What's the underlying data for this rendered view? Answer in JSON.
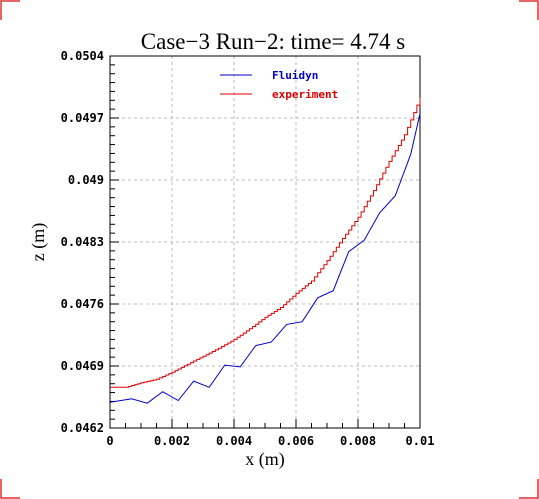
{
  "chart_data": {
    "type": "line",
    "title": "Case−3 Run−2: time= 4.74 s",
    "xlabel": "x (m)",
    "ylabel": "z (m)",
    "xlim": [
      0,
      0.01
    ],
    "ylim": [
      0.0462,
      0.0504
    ],
    "x_ticks": [
      "0",
      "0.002",
      "0.004",
      "0.006",
      "0.008",
      "0.01"
    ],
    "y_ticks": [
      "0.0462",
      "0.0469",
      "0.0476",
      "0.0483",
      "0.049",
      "0.0497",
      "0.0504"
    ],
    "grid": true,
    "legend_position": "top",
    "series": [
      {
        "name": "Fluidyn",
        "color": "#0000cc",
        "x": [
          0,
          0.0007,
          0.0012,
          0.0017,
          0.0022,
          0.0027,
          0.0032,
          0.0037,
          0.0042,
          0.0047,
          0.0052,
          0.0057,
          0.0062,
          0.0067,
          0.0072,
          0.0077,
          0.0082,
          0.0087,
          0.0092,
          0.0097,
          0.01
        ],
        "y": [
          0.04649,
          0.04653,
          0.04648,
          0.04661,
          0.04651,
          0.04673,
          0.04666,
          0.04691,
          0.04689,
          0.04713,
          0.04717,
          0.04737,
          0.0474,
          0.04767,
          0.04775,
          0.04819,
          0.04832,
          0.04863,
          0.04882,
          0.04929,
          0.04975
        ]
      },
      {
        "name": "experiment",
        "color": "#dd0000",
        "x": [
          0,
          0.0005,
          0.001,
          0.0015,
          0.002,
          0.0025,
          0.003,
          0.0035,
          0.004,
          0.0045,
          0.005,
          0.0055,
          0.006,
          0.0065,
          0.007,
          0.0075,
          0.008,
          0.0085,
          0.009,
          0.0095,
          0.01
        ],
        "y": [
          0.04666,
          0.04666,
          0.04671,
          0.04675,
          0.04683,
          0.04692,
          0.04701,
          0.0471,
          0.0472,
          0.04732,
          0.04745,
          0.04756,
          0.04772,
          0.04786,
          0.04809,
          0.04834,
          0.04858,
          0.04888,
          0.04921,
          0.04951,
          0.04993
        ]
      }
    ]
  }
}
